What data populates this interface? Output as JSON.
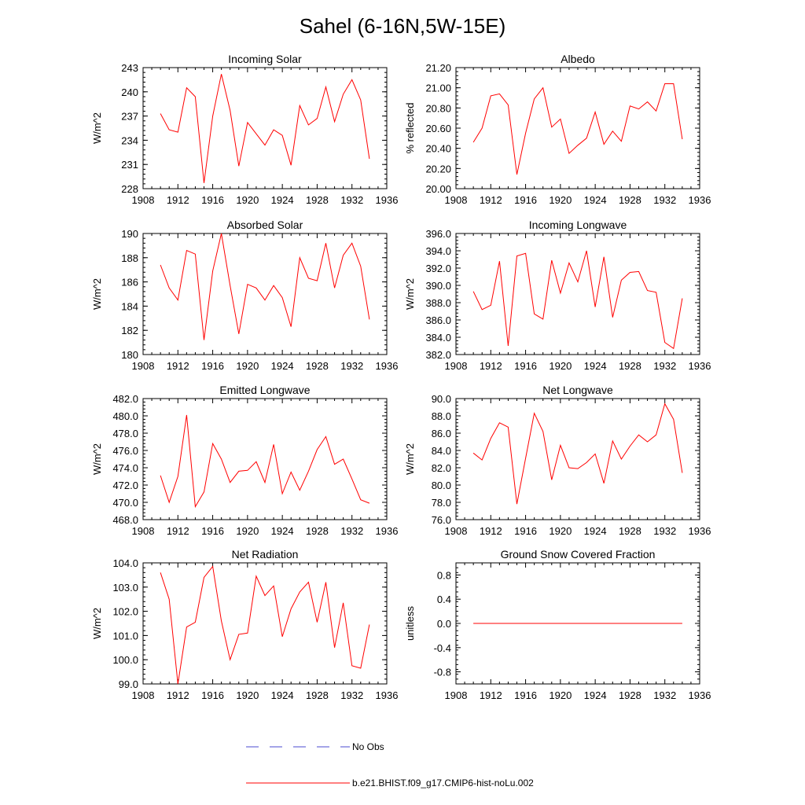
{
  "suptitle": "Sahel (6-16N,5W-15E)",
  "legend": [
    {
      "label": "No Obs",
      "color": "#4a4ad0",
      "dash": true
    },
    {
      "label": "b.e21.BHIST.f09_g17.CMIP6-hist-noLu.002",
      "color": "#ff0000",
      "dash": false
    }
  ],
  "chart_data": [
    {
      "type": "line",
      "title": "Incoming Solar",
      "ylabel": "W/m^2",
      "xlim": [
        1908,
        1936
      ],
      "xticks": [
        1908,
        1912,
        1916,
        1920,
        1924,
        1928,
        1932,
        1936
      ],
      "ylim": [
        228,
        243
      ],
      "yticks": [
        228,
        231,
        234,
        237,
        240,
        243
      ],
      "ytick_labels": [
        "228",
        "231",
        "234",
        "237",
        "240",
        "243"
      ],
      "x": [
        1910,
        1911,
        1912,
        1913,
        1914,
        1915,
        1916,
        1917,
        1918,
        1919,
        1920,
        1921,
        1922,
        1923,
        1924,
        1925,
        1926,
        1927,
        1928,
        1929,
        1930,
        1931,
        1932,
        1933,
        1934
      ],
      "series": [
        {
          "color": "#ff0000",
          "values": [
            237.3,
            235.3,
            235.0,
            240.5,
            239.4,
            228.7,
            237.0,
            242.2,
            237.7,
            230.8,
            236.2,
            234.8,
            233.4,
            235.3,
            234.6,
            230.9,
            238.3,
            235.9,
            236.7,
            240.6,
            236.3,
            239.7,
            241.5,
            239.0,
            231.7
          ]
        }
      ]
    },
    {
      "type": "line",
      "title": "Albedo",
      "ylabel": "% reflected",
      "xlim": [
        1908,
        1936
      ],
      "xticks": [
        1908,
        1912,
        1916,
        1920,
        1924,
        1928,
        1932,
        1936
      ],
      "ylim": [
        20.0,
        21.2
      ],
      "yticks": [
        20.0,
        20.2,
        20.4,
        20.6,
        20.8,
        21.0,
        21.2
      ],
      "ytick_labels": [
        "20.00",
        "20.20",
        "20.40",
        "20.60",
        "20.80",
        "21.00",
        "21.20"
      ],
      "x": [
        1910,
        1911,
        1912,
        1913,
        1914,
        1915,
        1916,
        1917,
        1918,
        1919,
        1920,
        1921,
        1922,
        1923,
        1924,
        1925,
        1926,
        1927,
        1928,
        1929,
        1930,
        1931,
        1932,
        1933,
        1934
      ],
      "series": [
        {
          "color": "#ff0000",
          "values": [
            20.46,
            20.6,
            20.92,
            20.94,
            20.83,
            20.14,
            20.55,
            20.89,
            21.0,
            20.61,
            20.69,
            20.35,
            20.43,
            20.5,
            20.76,
            20.44,
            20.57,
            20.47,
            20.82,
            20.79,
            20.86,
            20.77,
            21.04,
            21.04,
            20.49
          ]
        }
      ]
    },
    {
      "type": "line",
      "title": "Absorbed Solar",
      "ylabel": "W/m^2",
      "xlim": [
        1908,
        1936
      ],
      "xticks": [
        1908,
        1912,
        1916,
        1920,
        1924,
        1928,
        1932,
        1936
      ],
      "ylim": [
        180,
        190
      ],
      "yticks": [
        180,
        182,
        184,
        186,
        188,
        190
      ],
      "ytick_labels": [
        "180",
        "182",
        "184",
        "186",
        "188",
        "190"
      ],
      "x": [
        1910,
        1911,
        1912,
        1913,
        1914,
        1915,
        1916,
        1917,
        1918,
        1919,
        1920,
        1921,
        1922,
        1923,
        1924,
        1925,
        1926,
        1927,
        1928,
        1929,
        1930,
        1931,
        1932,
        1933,
        1934
      ],
      "series": [
        {
          "color": "#ff0000",
          "values": [
            187.4,
            185.5,
            184.5,
            188.6,
            188.3,
            181.2,
            186.9,
            190.0,
            185.7,
            181.7,
            185.8,
            185.5,
            184.5,
            185.7,
            184.7,
            182.3,
            188.0,
            186.3,
            186.1,
            189.2,
            185.5,
            188.2,
            189.2,
            187.3,
            182.9
          ]
        }
      ]
    },
    {
      "type": "line",
      "title": "Incoming Longwave",
      "ylabel": "W/m^2",
      "xlim": [
        1908,
        1936
      ],
      "xticks": [
        1908,
        1912,
        1916,
        1920,
        1924,
        1928,
        1932,
        1936
      ],
      "ylim": [
        382.0,
        396.0
      ],
      "yticks": [
        382,
        384,
        386,
        388,
        390,
        392,
        394,
        396
      ],
      "ytick_labels": [
        "382.0",
        "384.0",
        "386.0",
        "388.0",
        "390.0",
        "392.0",
        "394.0",
        "396.0"
      ],
      "x": [
        1910,
        1911,
        1912,
        1913,
        1914,
        1915,
        1916,
        1917,
        1918,
        1919,
        1920,
        1921,
        1922,
        1923,
        1924,
        1925,
        1926,
        1927,
        1928,
        1929,
        1930,
        1931,
        1932,
        1933,
        1934
      ],
      "series": [
        {
          "color": "#ff0000",
          "values": [
            389.3,
            387.2,
            387.7,
            392.8,
            383.0,
            393.4,
            393.7,
            386.7,
            386.1,
            392.9,
            389.1,
            392.6,
            390.4,
            394.0,
            387.5,
            393.3,
            386.3,
            390.6,
            391.5,
            391.6,
            389.4,
            389.2,
            383.4,
            382.7,
            388.5
          ]
        }
      ]
    },
    {
      "type": "line",
      "title": "Emitted Longwave",
      "ylabel": "W/m^2",
      "xlim": [
        1908,
        1936
      ],
      "xticks": [
        1908,
        1912,
        1916,
        1920,
        1924,
        1928,
        1932,
        1936
      ],
      "ylim": [
        468.0,
        482.0
      ],
      "yticks": [
        468,
        470,
        472,
        474,
        476,
        478,
        480,
        482
      ],
      "ytick_labels": [
        "468.0",
        "470.0",
        "472.0",
        "474.0",
        "476.0",
        "478.0",
        "480.0",
        "482.0"
      ],
      "x": [
        1910,
        1911,
        1912,
        1913,
        1914,
        1915,
        1916,
        1917,
        1918,
        1919,
        1920,
        1921,
        1922,
        1923,
        1924,
        1925,
        1926,
        1927,
        1928,
        1929,
        1930,
        1931,
        1932,
        1933,
        1934
      ],
      "series": [
        {
          "color": "#ff0000",
          "values": [
            473.1,
            470.0,
            473.0,
            480.1,
            469.5,
            471.2,
            476.8,
            475.0,
            472.3,
            473.6,
            473.7,
            474.7,
            472.3,
            476.7,
            471.0,
            473.5,
            471.4,
            473.6,
            476.1,
            477.6,
            474.4,
            475.0,
            472.7,
            470.3,
            469.9
          ]
        }
      ]
    },
    {
      "type": "line",
      "title": "Net Longwave",
      "ylabel": "W/m^2",
      "xlim": [
        1908,
        1936
      ],
      "xticks": [
        1908,
        1912,
        1916,
        1920,
        1924,
        1928,
        1932,
        1936
      ],
      "ylim": [
        76.0,
        90.0
      ],
      "yticks": [
        76,
        78,
        80,
        82,
        84,
        86,
        88,
        90
      ],
      "ytick_labels": [
        "76.0",
        "78.0",
        "80.0",
        "82.0",
        "84.0",
        "86.0",
        "88.0",
        "90.0"
      ],
      "x": [
        1910,
        1911,
        1912,
        1913,
        1914,
        1915,
        1916,
        1917,
        1918,
        1919,
        1920,
        1921,
        1922,
        1923,
        1924,
        1925,
        1926,
        1927,
        1928,
        1929,
        1930,
        1931,
        1932,
        1933,
        1934
      ],
      "series": [
        {
          "color": "#ff0000",
          "values": [
            83.7,
            82.9,
            85.4,
            87.2,
            86.7,
            77.8,
            83.1,
            88.3,
            86.2,
            80.6,
            84.6,
            82.0,
            81.9,
            82.6,
            83.6,
            80.2,
            85.1,
            83.0,
            84.5,
            85.8,
            85.0,
            85.8,
            89.4,
            87.6,
            81.4
          ]
        }
      ]
    },
    {
      "type": "line",
      "title": "Net Radiation",
      "ylabel": "W/m^2",
      "xlim": [
        1908,
        1936
      ],
      "xticks": [
        1908,
        1912,
        1916,
        1920,
        1924,
        1928,
        1932,
        1936
      ],
      "ylim": [
        99.0,
        104.0
      ],
      "yticks": [
        99,
        100,
        101,
        102,
        103,
        104
      ],
      "ytick_labels": [
        "99.0",
        "100.0",
        "101.0",
        "102.0",
        "103.0",
        "104.0"
      ],
      "x": [
        1910,
        1911,
        1912,
        1913,
        1914,
        1915,
        1916,
        1917,
        1918,
        1919,
        1920,
        1921,
        1922,
        1923,
        1924,
        1925,
        1926,
        1927,
        1928,
        1929,
        1930,
        1931,
        1932,
        1933,
        1934
      ],
      "series": [
        {
          "color": "#ff0000",
          "values": [
            103.6,
            102.5,
            99.0,
            101.35,
            101.55,
            103.4,
            103.85,
            101.6,
            100.0,
            101.05,
            101.1,
            103.45,
            102.65,
            103.05,
            100.95,
            102.1,
            102.8,
            103.2,
            101.55,
            103.2,
            100.5,
            102.35,
            99.75,
            99.65,
            101.45
          ]
        }
      ]
    },
    {
      "type": "line",
      "title": "Ground Snow Covered Fraction",
      "ylabel": "unitless",
      "xlim": [
        1908,
        1936
      ],
      "xticks": [
        1908,
        1912,
        1916,
        1920,
        1924,
        1928,
        1932,
        1936
      ],
      "ylim": [
        -1.0,
        1.0
      ],
      "yticks": [
        -0.8,
        -0.4,
        0.0,
        0.4,
        0.8
      ],
      "ytick_labels": [
        "-0.8",
        "-0.4",
        "0.0",
        "0.4",
        "0.8"
      ],
      "x": [
        1910,
        1911,
        1912,
        1913,
        1914,
        1915,
        1916,
        1917,
        1918,
        1919,
        1920,
        1921,
        1922,
        1923,
        1924,
        1925,
        1926,
        1927,
        1928,
        1929,
        1930,
        1931,
        1932,
        1933,
        1934
      ],
      "series": [
        {
          "color": "#ff0000",
          "values": [
            0,
            0,
            0,
            0,
            0,
            0,
            0,
            0,
            0,
            0,
            0,
            0,
            0,
            0,
            0,
            0,
            0,
            0,
            0,
            0,
            0,
            0,
            0,
            0,
            0
          ]
        }
      ]
    }
  ]
}
